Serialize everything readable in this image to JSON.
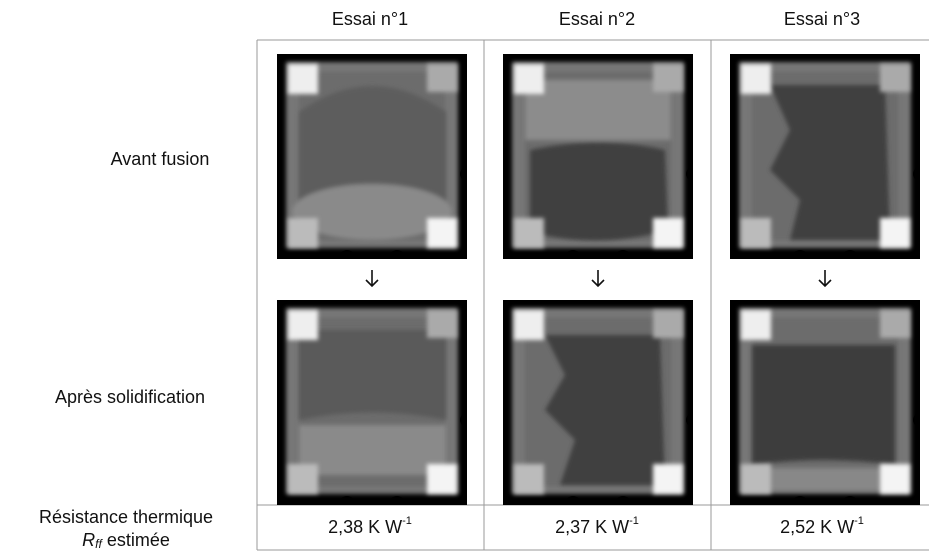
{
  "table": {
    "columns": [
      "Essai n°1",
      "Essai n°2",
      "Essai n°3"
    ],
    "rows": [
      "Avant fusion",
      "Après solidification"
    ],
    "resistance": {
      "label_line1": "Résistance thermique",
      "symbol": "R",
      "subscript": "ff",
      "label_line2": " estimée",
      "values": [
        {
          "text": "2,38 K W",
          "exponent": "-1"
        },
        {
          "text": "2,37 K W",
          "exponent": "-1"
        },
        {
          "text": "2,52 K W",
          "exponent": "-1"
        }
      ]
    }
  }
}
